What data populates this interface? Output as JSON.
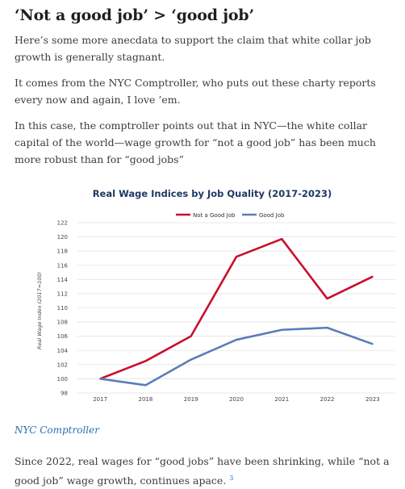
{
  "article": {
    "heading": "‘Not a good job’ > ‘good job’",
    "para1": "Here’s some more anecdata to support the claim that white collar job growth is generally stagnant.",
    "para2": "It comes from the NYC Comptroller, who puts out these charty reports every now and again, I love ’em.",
    "para3": "In this case, the comptroller points out that in NYC—the white collar capital of the world—wage growth for “not a good job” has been much more robust than for “good jobs”",
    "source_link": "NYC Comptroller",
    "para4": "Since 2022, real wages for “good jobs” have been shrinking, while “not a good job” wage growth, continues apace.",
    "footnote": "3"
  },
  "colors": {
    "not_good_job": "#c8102e",
    "good_job": "#5b7db8",
    "title": "#1f3864",
    "grid": "#e3e3e3"
  },
  "chart_data": {
    "type": "line",
    "title": "Real Wage Indices by Job Quality (2017-2023)",
    "xlabel": "",
    "ylabel": "Real Wage Index (2017=100)",
    "x": [
      "2017",
      "2018",
      "2019",
      "2020",
      "2021",
      "2022",
      "2023"
    ],
    "ylim": [
      98,
      122
    ],
    "yticks": [
      "98",
      "100",
      "102",
      "104",
      "106",
      "108",
      "110",
      "112",
      "114",
      "116",
      "118",
      "120",
      "122"
    ],
    "legend_position": "top-center",
    "grid": true,
    "series": [
      {
        "name": "Not a Good Job",
        "values": [
          100,
          102.5,
          106,
          117.2,
          119.7,
          111.3,
          114.4
        ]
      },
      {
        "name": "Good Job",
        "values": [
          100,
          99.1,
          102.7,
          105.5,
          106.9,
          107.2,
          104.9
        ]
      }
    ]
  }
}
